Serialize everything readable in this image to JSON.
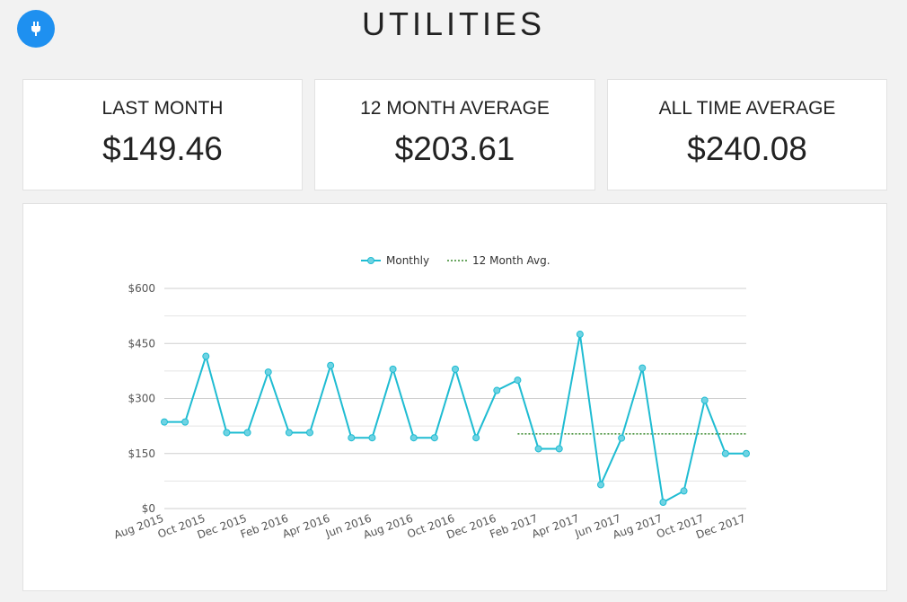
{
  "header": {
    "title": "UTILITIES",
    "icon": "plug-icon",
    "icon_color": "#1e90f0"
  },
  "cards": [
    {
      "label": "LAST MONTH",
      "value": "$149.46"
    },
    {
      "label": "12 MONTH AVERAGE",
      "value": "$203.61"
    },
    {
      "label": "ALL TIME AVERAGE",
      "value": "$240.08"
    }
  ],
  "chart_data": {
    "type": "line",
    "legend": {
      "position": "top-center"
    },
    "grid": true,
    "ylim": [
      0,
      600
    ],
    "y_ticks": [
      0,
      150,
      300,
      450,
      600
    ],
    "y_tick_labels": [
      "$0",
      "$150",
      "$300",
      "$450",
      "$600"
    ],
    "x_tick_labels": [
      "Aug 2015",
      "Oct 2015",
      "Dec 2015",
      "Feb 2016",
      "Apr 2016",
      "Jun 2016",
      "Aug 2016",
      "Oct 2016",
      "Dec 2016",
      "Feb 2017",
      "Apr 2017",
      "Jun 2017",
      "Aug 2017",
      "Oct 2017",
      "Dec 2017"
    ],
    "categories": [
      "Aug 2015",
      "Sep 2015",
      "Oct 2015",
      "Nov 2015",
      "Dec 2015",
      "Jan 2016",
      "Feb 2016",
      "Mar 2016",
      "Apr 2016",
      "May 2016",
      "Jun 2016",
      "Jul 2016",
      "Aug 2016",
      "Sep 2016",
      "Oct 2016",
      "Nov 2016",
      "Dec 2016",
      "Jan 2017",
      "Feb 2017",
      "Mar 2017",
      "Apr 2017",
      "May 2017",
      "Jun 2017",
      "Jul 2017",
      "Aug 2017",
      "Sep 2017",
      "Oct 2017",
      "Nov 2017",
      "Dec 2017"
    ],
    "series": [
      {
        "name": "Monthly",
        "color": "#1fbcd2",
        "values": [
          236,
          236,
          415,
          207,
          207,
          372,
          207,
          207,
          390,
          193,
          193,
          380,
          193,
          193,
          380,
          193,
          322,
          350,
          163,
          163,
          475,
          65,
          192,
          383,
          17,
          48,
          295,
          150,
          150
        ]
      },
      {
        "name": "12 Month Avg.",
        "color": "#3a8a2e",
        "style": "dotted",
        "start_category": "Jan 2017",
        "end_category": "Dec 2017",
        "value": 203.61
      }
    ]
  }
}
